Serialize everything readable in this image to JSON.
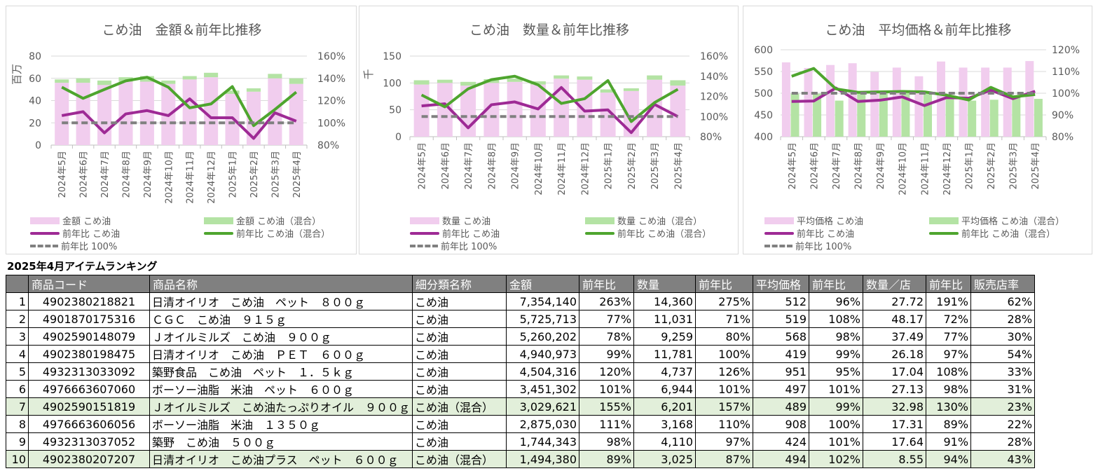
{
  "chart_data": [
    {
      "type": "bar+line",
      "stacked": true,
      "title": "こめ油　金額＆前年比推移",
      "ylabel": "百万",
      "ylim": [
        0,
        80
      ],
      "y2lim": [
        0.8,
        1.6
      ],
      "y_ticks": [
        "0",
        "20",
        "40",
        "60",
        "80"
      ],
      "y2_ticks": [
        "80%",
        "100%",
        "120%",
        "140%",
        "160%"
      ],
      "categories": [
        "2024年5月",
        "2024年6月",
        "2024年7月",
        "2024年8月",
        "2024年9月",
        "2024年10月",
        "2024年11月",
        "2024年12月",
        "2025年1月",
        "2025年2月",
        "2025年3月",
        "2025年4月"
      ],
      "series": [
        {
          "name": "金額 こめ油",
          "kind": "bar",
          "color": "#f1cdee",
          "values": [
            56,
            56,
            54,
            57,
            57,
            55,
            59,
            61,
            46,
            48,
            60,
            55
          ]
        },
        {
          "name": "金額 こめ油（混合）",
          "kind": "bar",
          "color": "#b4e3a4",
          "values": [
            3,
            4,
            4,
            4,
            5,
            3,
            3,
            4,
            3,
            3,
            4,
            5
          ]
        },
        {
          "name": "前年比 こめ油",
          "kind": "line",
          "color": "#9e2a95",
          "values": [
            1.065,
            1.1,
            0.91,
            1.08,
            1.11,
            1.065,
            1.215,
            1.046,
            1.046,
            0.86,
            1.09,
            1.015
          ]
        },
        {
          "name": "前年比 こめ油（混合）",
          "kind": "line",
          "color": "#4ea52e",
          "values": [
            1.32,
            1.22,
            1.3,
            1.377,
            1.41,
            1.32,
            1.135,
            1.17,
            1.326,
            0.975,
            1.12,
            1.276
          ]
        },
        {
          "name": "前年比 100%",
          "kind": "dash",
          "color": "#808080",
          "values": [
            1,
            1,
            1,
            1,
            1,
            1,
            1,
            1,
            1,
            1,
            1,
            1
          ]
        }
      ]
    },
    {
      "type": "bar+line",
      "stacked": true,
      "title": "こめ油　数量＆前年比推移",
      "ylabel": "千",
      "ylim": [
        0,
        150
      ],
      "y2lim": [
        0.8,
        1.6
      ],
      "y_ticks": [
        "0",
        "50",
        "100",
        "150"
      ],
      "y2_ticks": [
        "80%",
        "100%",
        "120%",
        "140%",
        "160%"
      ],
      "categories": [
        "2024年5月",
        "2024年6月",
        "2024年7月",
        "2024年8月",
        "2024年9月",
        "2024年10月",
        "2024年11月",
        "2024年12月",
        "2025年1月",
        "2025年2月",
        "2025年3月",
        "2025年4月"
      ],
      "series": [
        {
          "name": "数量 こめ油",
          "kind": "bar",
          "color": "#f1cdee",
          "values": [
            97,
            100,
            95,
            100,
            102,
            97,
            108,
            106,
            82,
            85,
            106,
            95
          ]
        },
        {
          "name": "数量 こめ油（混合）",
          "kind": "bar",
          "color": "#b4e3a4",
          "values": [
            8,
            6,
            7,
            7,
            6,
            6,
            6,
            6,
            6,
            5,
            8,
            10
          ]
        },
        {
          "name": "前年比 こめ油",
          "kind": "line",
          "color": "#9e2a95",
          "values": [
            1.105,
            1.126,
            0.888,
            1.117,
            1.145,
            1.075,
            1.288,
            1.054,
            1.066,
            0.84,
            1.12,
            1.0
          ]
        },
        {
          "name": "前年比 こめ油（混合）",
          "kind": "line",
          "color": "#4ea52e",
          "values": [
            1.214,
            1.096,
            1.275,
            1.366,
            1.4,
            1.315,
            1.13,
            1.177,
            1.357,
            0.95,
            1.138,
            1.27
          ]
        },
        {
          "name": "前年比 100%",
          "kind": "dash",
          "color": "#808080",
          "values": [
            1,
            1,
            1,
            1,
            1,
            1,
            1,
            1,
            1,
            1,
            1,
            1
          ]
        }
      ]
    },
    {
      "type": "bar+line",
      "stacked": false,
      "title": "こめ油　平均価格＆前年比推移",
      "ylabel": "",
      "ylim": [
        400,
        600
      ],
      "y2lim": [
        0.8,
        1.2
      ],
      "y_ticks": [
        "400",
        "450",
        "500",
        "550",
        "600"
      ],
      "y2_ticks": [
        "80%",
        "90%",
        "100%",
        "110%",
        "120%"
      ],
      "categories": [
        "2024年5月",
        "2024年6月",
        "2024年7月",
        "2024年8月",
        "2024年9月",
        "2024年10月",
        "2024年11月",
        "2024年12月",
        "2025年1月",
        "2025年2月",
        "2025年3月",
        "2025年4月"
      ],
      "series": [
        {
          "name": "平均価格 こめ油",
          "kind": "bar",
          "color": "#f1cdee",
          "values": [
            571,
            558,
            565,
            569,
            549,
            559,
            539,
            573,
            559,
            559,
            559,
            574
          ]
        },
        {
          "name": "平均価格 こめ油（混合）",
          "kind": "bar",
          "color": "#b4e3a4",
          "values": [
            499,
            499,
            483,
            499,
            501,
            501,
            501,
            494,
            483,
            485,
            493,
            487
          ]
        },
        {
          "name": "前年比 こめ油",
          "kind": "line",
          "color": "#9e2a95",
          "values": [
            0.962,
            0.964,
            1.024,
            0.962,
            0.968,
            0.983,
            0.943,
            0.98,
            0.977,
            1.014,
            0.975,
            1.009
          ]
        },
        {
          "name": "前年比 こめ油（混合）",
          "kind": "line",
          "color": "#4ea52e",
          "values": [
            1.078,
            1.114,
            1.02,
            1.004,
            1.006,
            1.008,
            1.006,
            0.991,
            0.969,
            1.027,
            0.983,
            0.994
          ]
        },
        {
          "name": "前年比 100%",
          "kind": "dash",
          "color": "#808080",
          "values": [
            1,
            1,
            1,
            1,
            1,
            1,
            1,
            1,
            1,
            1,
            1,
            1
          ]
        }
      ]
    }
  ],
  "ranking": {
    "title": "2025年4月アイテムランキング",
    "headers": [
      "",
      "商品コード",
      "商品名称",
      "細分類名称",
      "金額",
      "前年比",
      "数量",
      "前年比",
      "平均価格",
      "前年比",
      "数量／店",
      "前年比",
      "販売店率"
    ],
    "rows": [
      [
        "1",
        "4902380218821",
        "日清オイリオ　こめ油　ペット　８００ｇ",
        "こめ油",
        "7,354,140",
        "263%",
        "14,360",
        "275%",
        "512",
        "96%",
        "27.72",
        "191%",
        "62%"
      ],
      [
        "2",
        "4901870175316",
        "ＣＧＣ　こめ油　９１５ｇ",
        "こめ油",
        "5,725,713",
        "77%",
        "11,031",
        "71%",
        "519",
        "108%",
        "48.17",
        "72%",
        "28%"
      ],
      [
        "3",
        "4902590148079",
        "Ｊオイルミルズ　こめ油　９００ｇ",
        "こめ油",
        "5,260,202",
        "78%",
        "9,259",
        "80%",
        "568",
        "98%",
        "37.49",
        "77%",
        "30%"
      ],
      [
        "4",
        "4902380198475",
        "日清オイリオ　こめ油　ＰＥＴ　６００ｇ",
        "こめ油",
        "4,940,973",
        "99%",
        "11,781",
        "100%",
        "419",
        "99%",
        "26.18",
        "97%",
        "54%"
      ],
      [
        "5",
        "4932313033092",
        "築野食品　こめ油　ペット　１．５ｋｇ",
        "こめ油",
        "4,504,316",
        "120%",
        "4,737",
        "126%",
        "951",
        "95%",
        "17.04",
        "108%",
        "33%"
      ],
      [
        "6",
        "4976663607060",
        "ボーソー油脂　米油　ペット　６００ｇ",
        "こめ油",
        "3,451,302",
        "101%",
        "6,944",
        "101%",
        "497",
        "101%",
        "27.13",
        "98%",
        "31%"
      ],
      [
        "7",
        "4902590151819",
        "Ｊオイルミルズ　こめ油たっぷりオイル　９００ｇ",
        "こめ油（混合）",
        "3,029,621",
        "155%",
        "6,201",
        "157%",
        "489",
        "99%",
        "32.98",
        "130%",
        "23%"
      ],
      [
        "8",
        "4976663606056",
        "ボーソー油脂　米油　１３５０ｇ",
        "こめ油",
        "2,875,030",
        "111%",
        "3,168",
        "110%",
        "908",
        "100%",
        "17.31",
        "89%",
        "22%"
      ],
      [
        "9",
        "4932313037052",
        "築野　こめ油　５００ｇ",
        "こめ油",
        "1,744,343",
        "98%",
        "4,110",
        "97%",
        "424",
        "101%",
        "17.64",
        "91%",
        "28%"
      ],
      [
        "10",
        "4902380207207",
        "日清オイリオ　こめ油プラス　ペット　６００ｇ",
        "こめ油（混合）",
        "1,494,380",
        "89%",
        "3,025",
        "87%",
        "494",
        "102%",
        "8.55",
        "94%",
        "43%"
      ]
    ]
  }
}
